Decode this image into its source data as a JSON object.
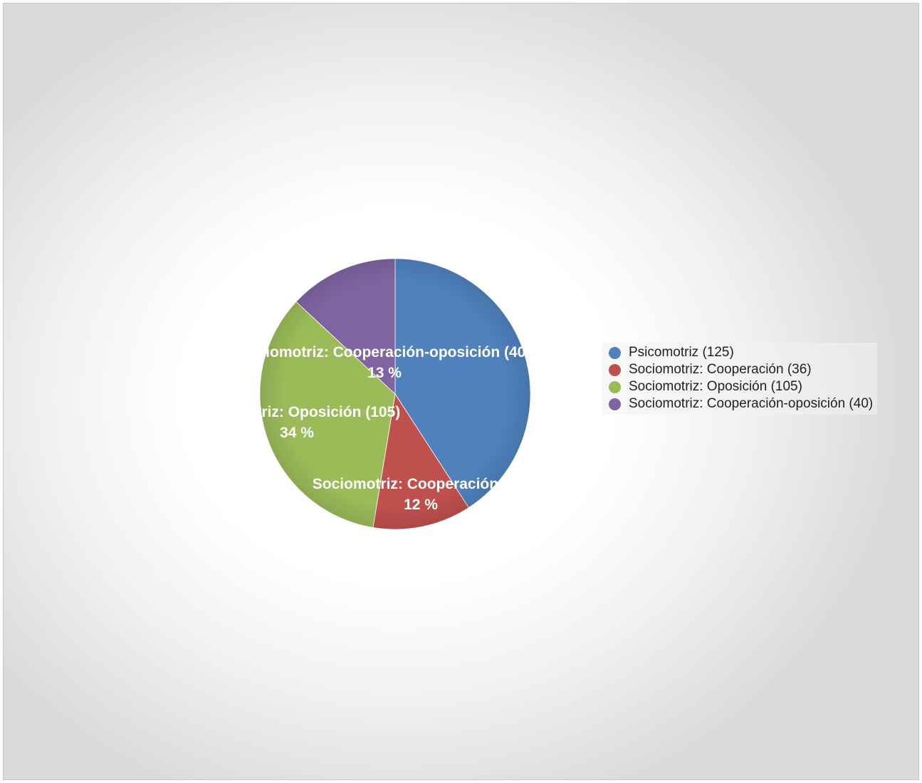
{
  "chart_data": {
    "type": "pie",
    "title": "",
    "categories": [
      "Psicomotriz",
      "Sociomotriz: Cooperación",
      "Sociomotriz: Oposición",
      "Sociomotriz: Cooperación-oposición"
    ],
    "values": [
      125,
      36,
      105,
      40
    ],
    "colors": [
      "#4F81BD",
      "#C0504D",
      "#9BBB59",
      "#8064A2"
    ],
    "legend": {
      "position": "right",
      "entries": [
        "Psicomotriz (125)",
        "Sociomotriz: Cooperación (36)",
        "Sociomotriz: Oposición (105)",
        "Sociomotriz: Cooperación-oposición (40)"
      ]
    },
    "data_labels": [
      {
        "name": "",
        "percent": ""
      },
      {
        "name": "Sociomotriz: Cooperación (36)",
        "percent": "12 %"
      },
      {
        "name": "Sociomotriz: Oposición (105)",
        "percent": "34 %"
      },
      {
        "name": "Sociomotriz: Cooperación-oposición (40)",
        "percent": "13 %"
      }
    ]
  }
}
